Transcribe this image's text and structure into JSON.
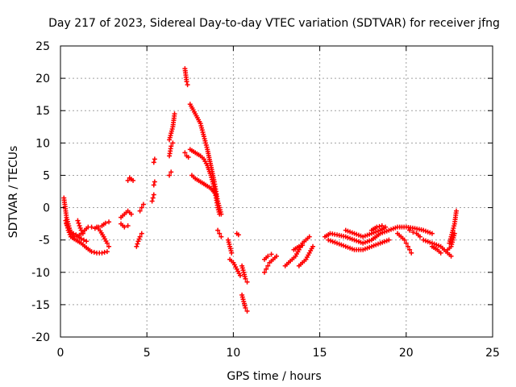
{
  "chart_data": {
    "type": "scatter",
    "title": "Day 217 of 2023, Sidereal Day-to-day VTEC variation (SDTVAR) for receiver jfng",
    "xlabel": "GPS time / hours",
    "ylabel": "SDTVAR / TECUs",
    "xlim": [
      0,
      25
    ],
    "ylim": [
      -20,
      25
    ],
    "xticks": [
      0,
      5,
      10,
      15,
      20,
      25
    ],
    "yticks": [
      -20,
      -15,
      -10,
      -5,
      0,
      5,
      10,
      15,
      20,
      25
    ],
    "grid": true,
    "marker": "+",
    "color": "#ff0000",
    "series": [
      {
        "name": "SDTVAR",
        "segments": [
          [
            [
              0.2,
              1.5
            ],
            [
              0.25,
              0.5
            ],
            [
              0.3,
              -0.5
            ],
            [
              0.35,
              -1.5
            ],
            [
              0.45,
              -2.5
            ],
            [
              0.55,
              -3.5
            ],
            [
              0.65,
              -4.0
            ],
            [
              0.8,
              -4.5
            ],
            [
              1.0,
              -4.5
            ],
            [
              1.2,
              -4.0
            ],
            [
              1.4,
              -3.5
            ],
            [
              1.6,
              -3.0
            ],
            [
              1.8,
              -3.0
            ],
            [
              2.0,
              -3.2
            ]
          ],
          [
            [
              0.3,
              -2.0
            ],
            [
              0.45,
              -3.5
            ],
            [
              0.6,
              -4.5
            ],
            [
              0.9,
              -5.0
            ],
            [
              1.2,
              -5.5
            ],
            [
              1.5,
              -6.2
            ],
            [
              1.8,
              -6.8
            ],
            [
              2.1,
              -7.0
            ],
            [
              2.4,
              -7.0
            ],
            [
              2.7,
              -6.8
            ]
          ],
          [
            [
              0.35,
              -2.5
            ],
            [
              0.6,
              -3.8
            ],
            [
              0.9,
              -4.2
            ],
            [
              1.2,
              -4.8
            ],
            [
              1.5,
              -5.2
            ]
          ],
          [
            [
              1.0,
              -2.0
            ],
            [
              1.1,
              -2.8
            ],
            [
              1.2,
              -3.5
            ],
            [
              1.3,
              -4.0
            ]
          ],
          [
            [
              2.1,
              -3.0
            ],
            [
              2.3,
              -3.6
            ],
            [
              2.5,
              -4.5
            ],
            [
              2.7,
              -5.5
            ],
            [
              2.8,
              -6.0
            ]
          ],
          [
            [
              2.2,
              -3.0
            ],
            [
              2.4,
              -2.8
            ],
            [
              2.6,
              -2.4
            ],
            [
              2.8,
              -2.2
            ]
          ],
          [
            [
              3.5,
              -2.5
            ],
            [
              3.7,
              -3.0
            ],
            [
              3.9,
              -2.8
            ]
          ],
          [
            [
              3.5,
              -1.5
            ],
            [
              3.7,
              -1.0
            ],
            [
              3.9,
              -0.5
            ],
            [
              4.1,
              -1.0
            ]
          ],
          [
            [
              3.9,
              4.2
            ],
            [
              4.0,
              4.6
            ],
            [
              4.1,
              4.4
            ],
            [
              4.2,
              4.2
            ]
          ],
          [
            [
              4.6,
              -0.5
            ],
            [
              4.7,
              0.0
            ],
            [
              4.8,
              0.5
            ]
          ],
          [
            [
              4.4,
              -6.0
            ],
            [
              4.5,
              -5.2
            ],
            [
              4.6,
              -4.5
            ],
            [
              4.7,
              -4.0
            ]
          ],
          [
            [
              5.3,
              1.0
            ],
            [
              5.35,
              1.5
            ],
            [
              5.4,
              2.0
            ]
          ],
          [
            [
              5.4,
              3.5
            ],
            [
              5.45,
              4.0
            ]
          ],
          [
            [
              5.4,
              7.0
            ],
            [
              5.45,
              7.5
            ]
          ],
          [
            [
              6.3,
              10.5
            ],
            [
              6.4,
              11.5
            ],
            [
              6.5,
              12.5
            ],
            [
              6.55,
              13.5
            ],
            [
              6.6,
              14.5
            ]
          ],
          [
            [
              6.3,
              8.0
            ],
            [
              6.4,
              9.5
            ],
            [
              6.5,
              10.0
            ]
          ],
          [
            [
              6.3,
              5.0
            ],
            [
              6.4,
              5.5
            ]
          ],
          [
            [
              7.2,
              21.5
            ],
            [
              7.25,
              20.5
            ],
            [
              7.3,
              19.5
            ],
            [
              7.35,
              19.0
            ]
          ],
          [
            [
              7.2,
              8.5
            ],
            [
              7.3,
              8.0
            ],
            [
              7.4,
              7.8
            ]
          ],
          [
            [
              7.5,
              16.0
            ],
            [
              7.8,
              14.5
            ],
            [
              8.1,
              13.0
            ],
            [
              8.3,
              11.0
            ],
            [
              8.5,
              9.0
            ],
            [
              8.7,
              6.5
            ],
            [
              8.9,
              4.0
            ],
            [
              9.0,
              2.5
            ],
            [
              9.1,
              1.0
            ],
            [
              9.2,
              0.0
            ],
            [
              9.3,
              -1.0
            ]
          ],
          [
            [
              7.5,
              9.0
            ],
            [
              7.8,
              8.5
            ],
            [
              8.1,
              8.0
            ],
            [
              8.3,
              7.5
            ],
            [
              8.5,
              6.5
            ],
            [
              8.7,
              5.0
            ],
            [
              8.9,
              3.0
            ],
            [
              9.0,
              1.5
            ],
            [
              9.1,
              0.0
            ],
            [
              9.2,
              -1.0
            ]
          ],
          [
            [
              7.6,
              5.0
            ],
            [
              7.8,
              4.5
            ],
            [
              8.1,
              4.0
            ],
            [
              8.4,
              3.5
            ],
            [
              8.7,
              3.0
            ],
            [
              9.0,
              2.0
            ]
          ],
          [
            [
              9.1,
              -3.5
            ],
            [
              9.2,
              -4.0
            ],
            [
              9.3,
              -4.5
            ]
          ],
          [
            [
              9.7,
              -5.0
            ],
            [
              9.8,
              -6.0
            ],
            [
              9.9,
              -7.0
            ]
          ],
          [
            [
              9.8,
              -8.0
            ],
            [
              10.0,
              -8.5
            ],
            [
              10.2,
              -9.5
            ],
            [
              10.4,
              -10.5
            ]
          ],
          [
            [
              10.2,
              -4.0
            ],
            [
              10.3,
              -4.2
            ]
          ],
          [
            [
              10.5,
              -9.0
            ],
            [
              10.6,
              -10.0
            ],
            [
              10.7,
              -11.0
            ],
            [
              10.8,
              -11.5
            ]
          ],
          [
            [
              10.5,
              -13.5
            ],
            [
              10.6,
              -14.5
            ],
            [
              10.7,
              -15.5
            ],
            [
              10.8,
              -16.0
            ]
          ],
          [
            [
              11.8,
              -10.0
            ],
            [
              11.9,
              -9.5
            ],
            [
              12.0,
              -9.0
            ],
            [
              12.1,
              -8.5
            ],
            [
              12.3,
              -8.0
            ],
            [
              12.5,
              -7.5
            ]
          ],
          [
            [
              11.8,
              -8.0
            ],
            [
              12.0,
              -7.5
            ],
            [
              12.2,
              -7.2
            ]
          ],
          [
            [
              13.0,
              -9.0
            ],
            [
              13.2,
              -8.5
            ],
            [
              13.4,
              -8.0
            ],
            [
              13.6,
              -7.5
            ],
            [
              13.8,
              -6.5
            ],
            [
              14.0,
              -5.5
            ],
            [
              14.2,
              -5.0
            ],
            [
              14.4,
              -4.5
            ]
          ],
          [
            [
              13.5,
              -6.5
            ],
            [
              13.8,
              -6.0
            ],
            [
              14.0,
              -5.8
            ]
          ],
          [
            [
              13.8,
              -9.0
            ],
            [
              14.0,
              -8.5
            ],
            [
              14.2,
              -8.0
            ],
            [
              14.4,
              -7.0
            ],
            [
              14.6,
              -6.0
            ]
          ],
          [
            [
              15.3,
              -4.5
            ],
            [
              15.6,
              -4.0
            ],
            [
              16.0,
              -4.2
            ],
            [
              16.5,
              -4.5
            ],
            [
              17.0,
              -5.0
            ],
            [
              17.5,
              -5.5
            ],
            [
              18.0,
              -5.0
            ],
            [
              18.5,
              -4.0
            ],
            [
              19.0,
              -3.5
            ],
            [
              19.5,
              -3.0
            ],
            [
              20.0,
              -3.0
            ],
            [
              20.5,
              -3.2
            ],
            [
              21.0,
              -3.5
            ],
            [
              21.5,
              -4.0
            ]
          ],
          [
            [
              15.5,
              -5.0
            ],
            [
              16.0,
              -5.5
            ],
            [
              16.5,
              -6.0
            ],
            [
              17.0,
              -6.5
            ],
            [
              17.5,
              -6.5
            ],
            [
              18.0,
              -6.0
            ],
            [
              18.5,
              -5.5
            ],
            [
              19.0,
              -5.0
            ]
          ],
          [
            [
              16.5,
              -3.5
            ],
            [
              17.0,
              -4.0
            ],
            [
              17.5,
              -4.5
            ],
            [
              18.0,
              -4.0
            ],
            [
              18.5,
              -3.5
            ],
            [
              18.8,
              -3.0
            ]
          ],
          [
            [
              18.0,
              -3.5
            ],
            [
              18.3,
              -3.0
            ],
            [
              18.6,
              -2.8
            ]
          ],
          [
            [
              19.5,
              -4.0
            ],
            [
              19.7,
              -4.5
            ],
            [
              19.9,
              -5.0
            ],
            [
              20.0,
              -5.5
            ],
            [
              20.1,
              -6.0
            ],
            [
              20.2,
              -6.5
            ],
            [
              20.3,
              -7.0
            ]
          ],
          [
            [
              20.2,
              -3.5
            ],
            [
              20.4,
              -3.8
            ],
            [
              20.6,
              -4.0
            ],
            [
              20.8,
              -4.5
            ]
          ],
          [
            [
              21.0,
              -5.0
            ],
            [
              21.5,
              -5.5
            ],
            [
              22.0,
              -6.0
            ],
            [
              22.2,
              -6.5
            ],
            [
              22.4,
              -7.0
            ],
            [
              22.6,
              -7.5
            ]
          ],
          [
            [
              21.5,
              -6.0
            ],
            [
              21.8,
              -6.5
            ],
            [
              22.0,
              -7.0
            ]
          ],
          [
            [
              22.5,
              -5.5
            ],
            [
              22.6,
              -4.5
            ],
            [
              22.7,
              -3.5
            ],
            [
              22.8,
              -2.5
            ],
            [
              22.85,
              -1.5
            ],
            [
              22.9,
              -0.5
            ]
          ],
          [
            [
              22.4,
              -6.5
            ],
            [
              22.6,
              -6.0
            ],
            [
              22.7,
              -5.0
            ],
            [
              22.8,
              -4.0
            ]
          ]
        ]
      }
    ]
  }
}
